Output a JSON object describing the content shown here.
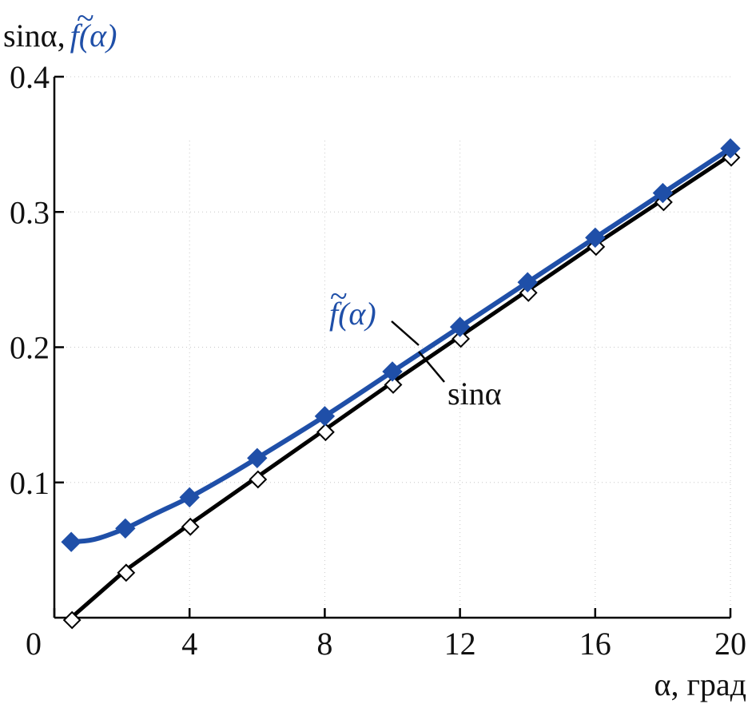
{
  "chart_data": {
    "type": "line",
    "title": "",
    "xlabel": "α, град",
    "ylabel": {
      "black": "sinα,",
      "blue": "f(α)",
      "blue_tilde": "~"
    },
    "xlim": [
      0,
      20
    ],
    "ylim": [
      0,
      0.4
    ],
    "xticks": [
      0,
      4,
      8,
      12,
      16,
      20
    ],
    "xtick_labels": [
      "0",
      "4",
      "8",
      "12",
      "16",
      "20"
    ],
    "yticks": [
      0.1,
      0.2,
      0.3,
      0.4
    ],
    "ytick_labels": [
      "0.1",
      "0.2",
      "0.3",
      "0.4"
    ],
    "grid": "dotted",
    "series": [
      {
        "name": "sinα",
        "color": "#000000",
        "marker": "open-diamond",
        "x": [
          0.5,
          2.1,
          4,
          6,
          8,
          10,
          12,
          14,
          16,
          18,
          20
        ],
        "y": [
          0.0,
          0.035,
          0.069,
          0.104,
          0.139,
          0.174,
          0.208,
          0.242,
          0.276,
          0.309,
          0.342
        ]
      },
      {
        "name": "f(α)",
        "color": "#1f4fa8",
        "marker": "filled-diamond",
        "x": [
          0.5,
          2.1,
          4,
          6,
          8,
          10,
          12,
          14,
          16,
          18,
          20
        ],
        "y": [
          0.056,
          0.066,
          0.089,
          0.118,
          0.149,
          0.182,
          0.215,
          0.248,
          0.281,
          0.314,
          0.347
        ],
        "curve_x": [
          0.5,
          1.2,
          2.1,
          3,
          4,
          5,
          6,
          8,
          10,
          12,
          14,
          16,
          18,
          20
        ],
        "curve_y": [
          0.056,
          0.058,
          0.066,
          0.077,
          0.089,
          0.103,
          0.118,
          0.149,
          0.182,
          0.215,
          0.248,
          0.281,
          0.314,
          0.347
        ]
      }
    ],
    "annotations": [
      {
        "text": "f(α)",
        "tilde": "~",
        "color": "#1f4fa8",
        "points_to_x": 11.2,
        "points_to_y": 0.204
      },
      {
        "text": "sinα",
        "color": "#000000",
        "points_to_x": 11.0,
        "points_to_y": 0.19
      }
    ]
  }
}
